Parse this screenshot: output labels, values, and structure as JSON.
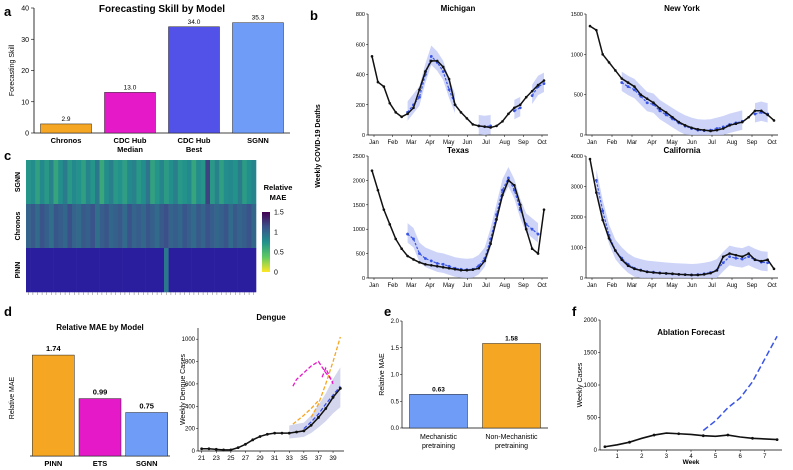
{
  "panels": {
    "a": "a",
    "b": "b",
    "c": "c",
    "d": "d",
    "e": "e",
    "f": "f"
  },
  "chart_data": [
    {
      "id": "a",
      "type": "bar",
      "title": "Forecasting Skill by Model",
      "ylabel": "Forecasting Skill",
      "ylim": [
        0,
        40
      ],
      "yticks": [
        0,
        10,
        20,
        30,
        40
      ],
      "categories": [
        "Chronos",
        "CDC Hub Median",
        "CDC Hub Best",
        "SGNN"
      ],
      "category_lines": [
        [
          "Chronos"
        ],
        [
          "CDC Hub",
          "Median"
        ],
        [
          "CDC Hub",
          "Best"
        ],
        [
          "SGNN"
        ]
      ],
      "values": [
        2.9,
        13.0,
        34.0,
        35.3
      ],
      "value_labels": [
        "2.9",
        "13.0",
        "34.0",
        "35.3"
      ],
      "colors": [
        "#f5a623",
        "#e619c8",
        "#5252e8",
        "#6f9cf7"
      ]
    },
    {
      "id": "b",
      "type": "line",
      "ylabel": "Weekly COVID-19 Deaths",
      "months": [
        "Jan",
        "Feb",
        "Mar",
        "Apr",
        "May",
        "Jun",
        "Jul",
        "Aug",
        "Sep",
        "Oct"
      ],
      "subplots": [
        {
          "title": "Michigan",
          "ylim": [
            0,
            800
          ],
          "yticks": [
            0,
            200,
            400,
            600,
            800
          ],
          "actual": [
            520,
            350,
            320,
            210,
            150,
            120,
            140,
            180,
            300,
            420,
            490,
            490,
            450,
            370,
            200,
            150,
            110,
            70,
            60,
            55,
            50,
            60,
            90,
            140,
            180,
            200,
            250,
            290,
            330,
            360
          ],
          "forecast": [
            null,
            null,
            null,
            null,
            null,
            null,
            150,
            200,
            250,
            400,
            520,
            480,
            420,
            300,
            200,
            null,
            null,
            null,
            60,
            55,
            60,
            null,
            null,
            null,
            160,
            180,
            null,
            260,
            320,
            340
          ]
        },
        {
          "title": "New York",
          "ylim": [
            0,
            1500
          ],
          "yticks": [
            0,
            500,
            1000,
            1500
          ],
          "actual": [
            1350,
            1300,
            1000,
            900,
            800,
            700,
            650,
            600,
            500,
            450,
            400,
            330,
            280,
            220,
            160,
            120,
            90,
            70,
            60,
            50,
            60,
            80,
            120,
            140,
            160,
            220,
            300,
            300,
            250,
            180
          ],
          "forecast": [
            null,
            null,
            null,
            null,
            null,
            650,
            600,
            560,
            480,
            400,
            380,
            300,
            250,
            200,
            150,
            110,
            80,
            60,
            55,
            60,
            80,
            100,
            130,
            150,
            170,
            null,
            260,
            280,
            260,
            null
          ]
        },
        {
          "title": "Texas",
          "ylim": [
            0,
            2500
          ],
          "yticks": [
            0,
            500,
            1000,
            1500,
            2000,
            2500
          ],
          "actual": [
            2200,
            1800,
            1400,
            1100,
            800,
            600,
            450,
            380,
            320,
            280,
            260,
            240,
            220,
            200,
            180,
            160,
            160,
            170,
            200,
            350,
            700,
            1200,
            1700,
            2000,
            1900,
            1500,
            1000,
            600,
            500,
            1400
          ],
          "forecast": [
            null,
            null,
            null,
            null,
            null,
            null,
            900,
            800,
            500,
            400,
            350,
            300,
            280,
            240,
            200,
            180,
            170,
            180,
            250,
            400,
            800,
            1300,
            1800,
            2050,
            1800,
            1400,
            1100,
            1000,
            900,
            null
          ]
        },
        {
          "title": "California",
          "ylim": [
            0,
            4000
          ],
          "yticks": [
            0,
            1000,
            2000,
            3000,
            4000
          ],
          "actual": [
            3900,
            2800,
            1900,
            1300,
            900,
            600,
            400,
            300,
            250,
            200,
            180,
            160,
            150,
            140,
            120,
            110,
            100,
            100,
            120,
            160,
            250,
            700,
            800,
            750,
            700,
            800,
            600,
            550,
            600,
            300
          ],
          "forecast": [
            null,
            3200,
            2200,
            1400,
            900,
            650,
            450,
            320,
            260,
            210,
            190,
            170,
            150,
            130,
            120,
            110,
            100,
            110,
            140,
            180,
            260,
            500,
            700,
            650,
            620,
            700,
            600,
            520,
            500,
            null
          ]
        }
      ]
    },
    {
      "id": "c",
      "type": "heatmap",
      "rows": [
        "SGNN",
        "Chronos",
        "PINN"
      ],
      "colorbar_title": [
        "Relative",
        "MAE"
      ],
      "colorbar_range": [
        0,
        1.5
      ],
      "colorbar_ticks": [
        0,
        0.5,
        1,
        1.5
      ],
      "colorbar_tick_labels": [
        "0",
        "0.5",
        "1",
        "1.5"
      ],
      "columns": 50,
      "row_values": [
        [
          0.72,
          0.78,
          0.65,
          0.8,
          0.7,
          0.84,
          0.62,
          0.76,
          0.88,
          0.7,
          0.8,
          0.74,
          0.66,
          0.82,
          0.72,
          0.9,
          0.6,
          0.78,
          0.86,
          0.7,
          0.74,
          0.66,
          0.8,
          0.84,
          0.7,
          0.78,
          0.92,
          0.64,
          0.72,
          0.82,
          0.68,
          0.76,
          0.86,
          0.7,
          0.74,
          0.8,
          0.62,
          0.78,
          0.72,
          1.2,
          0.7,
          0.84,
          0.66,
          0.78,
          0.8,
          0.74,
          0.88,
          0.68,
          0.76,
          0.82
        ],
        [
          1.02,
          1.08,
          0.98,
          1.12,
          1.04,
          0.96,
          1.1,
          1.06,
          1.0,
          1.14,
          1.02,
          0.98,
          1.08,
          1.04,
          1.12,
          0.96,
          1.06,
          1.1,
          1.0,
          1.04,
          1.08,
          0.98,
          1.12,
          1.02,
          1.06,
          1.0,
          1.1,
          1.04,
          0.98,
          1.08,
          1.14,
          1.02,
          1.06,
          1.0,
          1.1,
          1.04,
          0.98,
          1.08,
          1.02,
          1.12,
          1.06,
          1.0,
          1.04,
          1.1,
          0.98,
          1.08,
          1.02,
          1.06,
          1.12,
          1.0
        ],
        [
          1.6,
          1.6,
          1.6,
          1.6,
          1.6,
          1.6,
          1.6,
          1.6,
          1.6,
          1.6,
          1.6,
          1.6,
          1.6,
          1.6,
          1.6,
          1.6,
          1.6,
          1.6,
          1.6,
          1.6,
          1.6,
          1.6,
          1.6,
          1.6,
          1.6,
          1.6,
          1.6,
          1.6,
          1.6,
          1.6,
          0.9,
          1.6,
          1.6,
          1.6,
          1.6,
          1.6,
          1.6,
          1.6,
          1.6,
          1.6,
          1.6,
          1.6,
          1.6,
          1.6,
          1.6,
          1.6,
          1.6,
          1.6,
          1.6,
          1.6
        ]
      ]
    },
    {
      "id": "d",
      "type": "bar",
      "title": "Relative MAE by Model",
      "ylabel": "Relative MAE",
      "categories": [
        "PINN",
        "ETS",
        "SGNN"
      ],
      "values": [
        1.74,
        0.99,
        0.75
      ],
      "value_labels": [
        "1.74",
        "0.99",
        "0.75"
      ],
      "ylim": [
        0,
        2
      ],
      "colors": [
        "#f5a623",
        "#e619c8",
        "#6f9cf7"
      ]
    },
    {
      "id": "d2",
      "type": "line",
      "title": "Dengue",
      "ylabel": "Weekly Dengue Cases",
      "ylim": [
        0,
        1100
      ],
      "yticks": [
        0,
        200,
        400,
        600,
        800,
        1000
      ],
      "x": [
        21,
        22,
        23,
        24,
        25,
        26,
        27,
        28,
        29,
        30,
        31,
        32,
        33,
        34,
        35,
        36,
        37,
        38,
        39,
        40
      ],
      "xtick_labels": [
        "21",
        "23",
        "25",
        "27",
        "29",
        "31",
        "33",
        "35",
        "37",
        "39"
      ],
      "actual": [
        20,
        20,
        15,
        10,
        10,
        30,
        60,
        100,
        130,
        150,
        160,
        160,
        160,
        170,
        180,
        230,
        300,
        380,
        480,
        560
      ],
      "fan_segments": [
        {
          "color": "#e619c8",
          "x": [
            33.5,
            34,
            35,
            36,
            37,
            38,
            39
          ],
          "y": [
            580,
            640,
            700,
            760,
            800,
            700,
            620
          ]
        },
        {
          "color": "#e619c8",
          "x": [
            37.5,
            38,
            39
          ],
          "y": [
            660,
            740,
            600
          ]
        },
        {
          "color": "#f5a623",
          "x": [
            33.5,
            35,
            36,
            37
          ],
          "y": [
            240,
            320,
            380,
            450
          ]
        },
        {
          "color": "#f5a623",
          "x": [
            36,
            37,
            38,
            39,
            40
          ],
          "y": [
            300,
            420,
            600,
            800,
            1020
          ]
        },
        {
          "color": "#3a4ee8",
          "x": [
            35,
            36,
            37,
            38,
            39,
            40
          ],
          "y": [
            200,
            260,
            330,
            420,
            500,
            580
          ]
        }
      ]
    },
    {
      "id": "e",
      "type": "bar",
      "ylabel": "Relative MAE",
      "ylim": [
        0,
        2
      ],
      "yticks": [
        0,
        0.5,
        1,
        1.5,
        2
      ],
      "ytick_labels": [
        "0.0",
        "0.5",
        "1.0",
        "1.5",
        "2.0"
      ],
      "categories": [
        "Mechanistic pretraining",
        "Non-Mechanistic pretraining"
      ],
      "category_lines": [
        [
          "Mechanistic",
          "pretraining"
        ],
        [
          "Non-Mechanistic",
          "pretraining"
        ]
      ],
      "values": [
        0.63,
        1.58
      ],
      "value_labels": [
        "0.63",
        "1.58"
      ],
      "colors": [
        "#6f9cf7",
        "#f5a623"
      ]
    },
    {
      "id": "f",
      "type": "line",
      "title": "Ablation Forecast",
      "xlabel": "Week",
      "ylabel": "Weekly Cases",
      "ylim": [
        0,
        2000
      ],
      "yticks": [
        0,
        500,
        1000,
        1500,
        2000
      ],
      "x": [
        0.5,
        1,
        1.5,
        2,
        2.5,
        3,
        3.5,
        4,
        4.5,
        5,
        5.5,
        6,
        6.5,
        7,
        7.5
      ],
      "xtick_labels": [
        "1",
        "2",
        "3",
        "4",
        "5",
        "6",
        "7"
      ],
      "actual": [
        50,
        80,
        120,
        180,
        230,
        260,
        250,
        240,
        220,
        210,
        230,
        200,
        180,
        170,
        160
      ],
      "forecast_x": [
        4.5,
        5,
        5.5,
        6,
        6.5,
        7,
        7.5
      ],
      "forecast": [
        300,
        450,
        650,
        800,
        1050,
        1400,
        1750
      ]
    }
  ]
}
